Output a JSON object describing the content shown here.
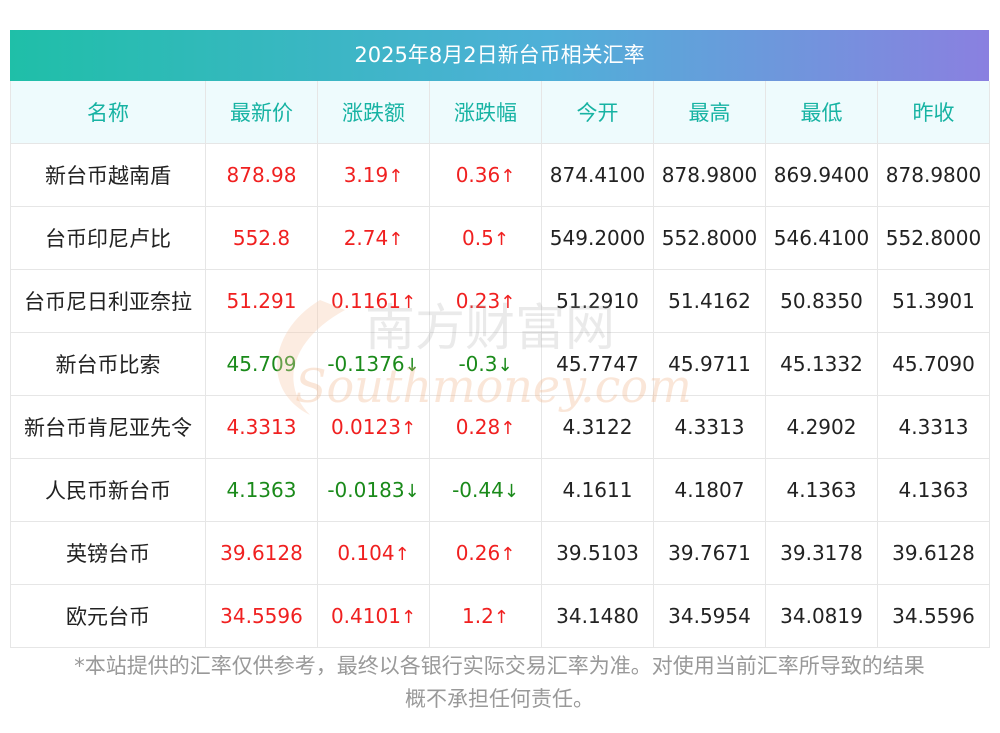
{
  "title": "2025年8月2日新台币相关汇率",
  "headers": [
    "名称",
    "最新价",
    "涨跌额",
    "涨跌幅",
    "今开",
    "最高",
    "最低",
    "昨收"
  ],
  "rows": [
    {
      "name": "新台币越南盾",
      "latest": "878.98",
      "change": "3.19",
      "pct": "0.36",
      "dir": "up",
      "arrow": "↑",
      "open": "874.4100",
      "high": "878.9800",
      "low": "869.9400",
      "prev": "878.9800"
    },
    {
      "name": "台币印尼卢比",
      "latest": "552.8",
      "change": "2.74",
      "pct": "0.5",
      "dir": "up",
      "arrow": "↑",
      "open": "549.2000",
      "high": "552.8000",
      "low": "546.4100",
      "prev": "552.8000"
    },
    {
      "name": "台币尼日利亚奈拉",
      "latest": "51.291",
      "change": "0.1161",
      "pct": "0.23",
      "dir": "up",
      "arrow": "↑",
      "open": "51.2910",
      "high": "51.4162",
      "low": "50.8350",
      "prev": "51.3901"
    },
    {
      "name": "新台币比索",
      "latest": "45.709",
      "change": "-0.1376",
      "pct": "-0.3",
      "dir": "down",
      "arrow": "↓",
      "open": "45.7747",
      "high": "45.9711",
      "low": "45.1332",
      "prev": "45.7090"
    },
    {
      "name": "新台币肯尼亚先令",
      "latest": "4.3313",
      "change": "0.0123",
      "pct": "0.28",
      "dir": "up",
      "arrow": "↑",
      "open": "4.3122",
      "high": "4.3313",
      "low": "4.2902",
      "prev": "4.3313"
    },
    {
      "name": "人民币新台币",
      "latest": "4.1363",
      "change": "-0.0183",
      "pct": "-0.44",
      "dir": "down",
      "arrow": "↓",
      "open": "4.1611",
      "high": "4.1807",
      "low": "4.1363",
      "prev": "4.1363"
    },
    {
      "name": "英镑台币",
      "latest": "39.6128",
      "change": "0.104",
      "pct": "0.26",
      "dir": "up",
      "arrow": "↑",
      "open": "39.5103",
      "high": "39.7671",
      "low": "39.3178",
      "prev": "39.6128"
    },
    {
      "name": "欧元台币",
      "latest": "34.5596",
      "change": "0.4101",
      "pct": "1.2",
      "dir": "up",
      "arrow": "↑",
      "open": "34.1480",
      "high": "34.5954",
      "low": "34.0819",
      "prev": "34.5596"
    }
  ],
  "watermark": {
    "cn": "南方财富网",
    "en": "Southmoney.com"
  },
  "footnote_line1": "*本站提供的汇率仅供参考，最终以各银行实际交易汇率为准。对使用当前汇率所导致的结果",
  "footnote_line2": "概不承担任何责任。",
  "colors": {
    "up": "#f02020",
    "down": "#1a8a1a",
    "header_text": "#17b3a3",
    "title_gradient": [
      "#1fbfa8",
      "#8a80e0"
    ]
  }
}
